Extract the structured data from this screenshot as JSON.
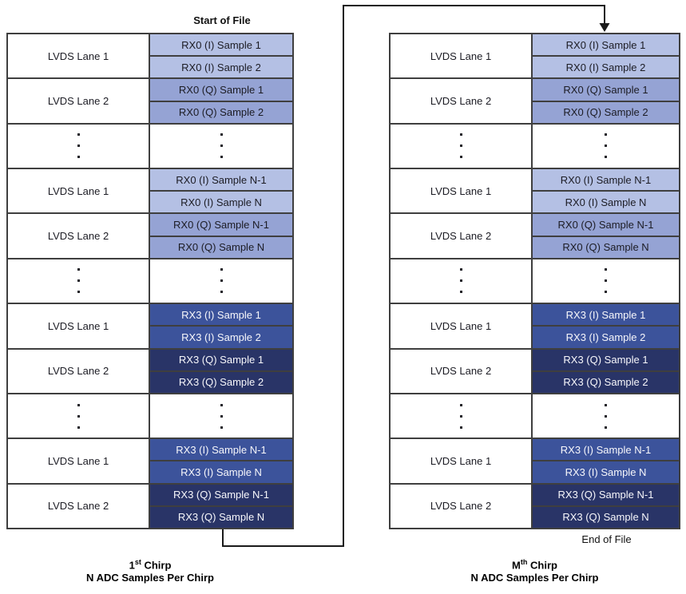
{
  "start_label": "Start of File",
  "end_label": "End of File",
  "colors": {
    "rx0_i": "#b4c0e4",
    "rx0_q": "#95a3d4",
    "rx3_i": "#3c539b",
    "rx3_q": "#293467",
    "border": "#3f3f3f",
    "arrow": "#1a1a1a",
    "text_on_light": "#1c1c24",
    "text_on_dark": "#f7f7fb"
  },
  "tables": [
    {
      "id": "first-chirp",
      "caption": {
        "ordinal": "1",
        "sup": "st",
        "word": " Chirp",
        "line2": "N ADC Samples Per Chirp"
      },
      "rows": [
        {
          "type": "lane",
          "label": "LVDS Lane 1",
          "style": "rx0_i",
          "cells": [
            "RX0 (I) Sample 1",
            "RX0 (I) Sample 2"
          ]
        },
        {
          "type": "lane",
          "label": "LVDS Lane 2",
          "style": "rx0_q",
          "cells": [
            "RX0 (Q) Sample 1",
            "RX0 (Q) Sample 2"
          ]
        },
        {
          "type": "dots"
        },
        {
          "type": "lane",
          "label": "LVDS Lane 1",
          "style": "rx0_i",
          "cells": [
            "RX0 (I) Sample N-1",
            "RX0 (I) Sample N"
          ]
        },
        {
          "type": "lane",
          "label": "LVDS Lane 2",
          "style": "rx0_q",
          "cells": [
            "RX0 (Q) Sample N-1",
            "RX0 (Q) Sample N"
          ]
        },
        {
          "type": "dots"
        },
        {
          "type": "lane",
          "label": "LVDS Lane 1",
          "style": "rx3_i",
          "cells": [
            "RX3 (I) Sample 1",
            "RX3 (I) Sample 2"
          ]
        },
        {
          "type": "lane",
          "label": "LVDS Lane 2",
          "style": "rx3_q",
          "cells": [
            "RX3 (Q) Sample 1",
            "RX3 (Q) Sample 2"
          ]
        },
        {
          "type": "dots"
        },
        {
          "type": "lane",
          "label": "LVDS Lane 1",
          "style": "rx3_i",
          "cells": [
            "RX3 (I) Sample N-1",
            "RX3 (I) Sample N"
          ]
        },
        {
          "type": "lane",
          "label": "LVDS Lane 2",
          "style": "rx3_q",
          "cells": [
            "RX3 (Q) Sample N-1",
            "RX3 (Q) Sample N"
          ]
        }
      ]
    },
    {
      "id": "mth-chirp",
      "caption": {
        "ordinal": "M",
        "sup": "th",
        "word": " Chirp",
        "line2": "N ADC Samples Per Chirp"
      },
      "rows": [
        {
          "type": "lane",
          "label": "LVDS Lane 1",
          "style": "rx0_i",
          "cells": [
            "RX0 (I) Sample 1",
            "RX0 (I) Sample 2"
          ]
        },
        {
          "type": "lane",
          "label": "LVDS Lane 2",
          "style": "rx0_q",
          "cells": [
            "RX0 (Q) Sample 1",
            "RX0 (Q) Sample 2"
          ]
        },
        {
          "type": "dots"
        },
        {
          "type": "lane",
          "label": "LVDS Lane 1",
          "style": "rx0_i",
          "cells": [
            "RX0 (I) Sample N-1",
            "RX0 (I) Sample N"
          ]
        },
        {
          "type": "lane",
          "label": "LVDS Lane 2",
          "style": "rx0_q",
          "cells": [
            "RX0 (Q) Sample N-1",
            "RX0 (Q) Sample N"
          ]
        },
        {
          "type": "dots"
        },
        {
          "type": "lane",
          "label": "LVDS Lane 1",
          "style": "rx3_i",
          "cells": [
            "RX3 (I) Sample 1",
            "RX3 (I) Sample 2"
          ]
        },
        {
          "type": "lane",
          "label": "LVDS Lane 2",
          "style": "rx3_q",
          "cells": [
            "RX3 (Q) Sample 1",
            "RX3 (Q) Sample 2"
          ]
        },
        {
          "type": "dots"
        },
        {
          "type": "lane",
          "label": "LVDS Lane 1",
          "style": "rx3_i",
          "cells": [
            "RX3 (I) Sample N-1",
            "RX3 (I) Sample N"
          ]
        },
        {
          "type": "lane",
          "label": "LVDS Lane 2",
          "style": "rx3_q",
          "cells": [
            "RX3 (Q) Sample N-1",
            "RX3 (Q) Sample N"
          ]
        }
      ]
    }
  ]
}
